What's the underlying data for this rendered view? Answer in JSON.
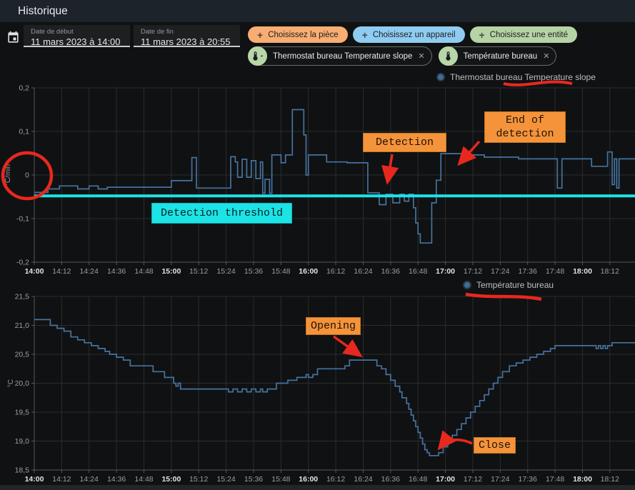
{
  "header": {
    "title": "Historique"
  },
  "toolbar": {
    "plus_glyph": "+",
    "close_glyph": "✕",
    "date_start": {
      "label": "Date de début",
      "value": "11 mars 2023 à 14:00"
    },
    "date_end": {
      "label": "Date de fin",
      "value": "11 mars 2023 à 20:55"
    },
    "filter_chips": [
      {
        "label": "Choisissez la pièce",
        "bg": "#f8ad72"
      },
      {
        "label": "Choisissez un appareil",
        "bg": "#8fccf1"
      },
      {
        "label": "Choisissez une entité",
        "bg": "#b5d3a4"
      }
    ],
    "entity_chips": [
      {
        "label": "Thermostat bureau Temperature slope"
      },
      {
        "label": "Température bureau"
      }
    ]
  },
  "colors": {
    "red_annotation": "#e8281e",
    "orange_annotation": "#f5933b",
    "threshold_cyan": "#1ce4e6",
    "series_blue": "#4573a0",
    "header_bg": "#1c232b"
  },
  "annotations": {
    "detection": "Detection",
    "end_of_detection": "End of detection",
    "opening": "Opening",
    "close": "Close"
  },
  "chart_data": [
    {
      "type": "line",
      "step": true,
      "legend": "Thermostat bureau Temperature slope",
      "ylabel": "°C/min",
      "ylim": [
        -0.2,
        0.2
      ],
      "ytick_values": [
        0.2,
        0.1,
        0,
        -0.1,
        -0.2
      ],
      "ytick_labels": [
        "0,2",
        "0,1",
        "0",
        "-0,1",
        "-0,2"
      ],
      "xlim_minutes": [
        0,
        263
      ],
      "x_start_label": "14:00",
      "xtick_interval_minutes": 12,
      "xtick_labels": [
        "14:00",
        "14:12",
        "14:24",
        "14:36",
        "14:48",
        "15:00",
        "15:12",
        "15:24",
        "15:36",
        "15:48",
        "16:00",
        "16:12",
        "16:24",
        "16:36",
        "16:48",
        "17:00",
        "17:12",
        "17:24",
        "17:36",
        "17:48",
        "18:00",
        "18:12"
      ],
      "grid": true,
      "threshold_line": {
        "value": -0.048,
        "color": "#1ce4e6",
        "label": "Detection threshold"
      },
      "series": [
        {
          "name": "Thermostat bureau Temperature slope",
          "color": "#4573a0",
          "points_min_value": [
            [
              0,
              -0.04
            ],
            [
              6,
              -0.032
            ],
            [
              11,
              -0.025
            ],
            [
              19,
              -0.032
            ],
            [
              24,
              -0.025
            ],
            [
              28,
              -0.032
            ],
            [
              32,
              -0.028
            ],
            [
              60,
              -0.013
            ],
            [
              69,
              0.04
            ],
            [
              71,
              -0.03
            ],
            [
              86,
              0.042
            ],
            [
              88,
              0.03
            ],
            [
              89,
              -0.005
            ],
            [
              91,
              0.036
            ],
            [
              93,
              -0.005
            ],
            [
              95,
              0.033
            ],
            [
              97,
              -0.008
            ],
            [
              99,
              0.03
            ],
            [
              100,
              -0.042
            ],
            [
              101,
              -0.01
            ],
            [
              103,
              -0.042
            ],
            [
              104,
              0.046
            ],
            [
              108,
              0.028
            ],
            [
              110,
              0.046
            ],
            [
              113,
              0.15
            ],
            [
              118,
              0.092
            ],
            [
              119,
              0
            ],
            [
              120,
              0.046
            ],
            [
              128,
              0.03
            ],
            [
              137,
              0.028
            ],
            [
              146,
              -0.041
            ],
            [
              151,
              -0.068
            ],
            [
              154,
              -0.044
            ],
            [
              157,
              -0.064
            ],
            [
              160,
              -0.044
            ],
            [
              162,
              -0.06
            ],
            [
              164,
              -0.044
            ],
            [
              166,
              -0.075
            ],
            [
              167,
              -0.11
            ],
            [
              168,
              -0.135
            ],
            [
              169,
              -0.156
            ],
            [
              174,
              -0.064
            ],
            [
              176,
              -0.012
            ],
            [
              178,
              0.049
            ],
            [
              190,
              0.046
            ],
            [
              197,
              0.041
            ],
            [
              212,
              0.037
            ],
            [
              229,
              -0.03
            ],
            [
              231,
              0.037
            ],
            [
              244,
              0.02
            ],
            [
              251,
              0.053
            ],
            [
              253,
              -0.022
            ],
            [
              254,
              0.037
            ],
            [
              255,
              -0.03
            ],
            [
              256,
              0.037
            ],
            [
              263,
              0.037
            ]
          ]
        }
      ]
    },
    {
      "type": "line",
      "step": true,
      "legend": "Température bureau",
      "ylabel": "°C",
      "ylim": [
        18.5,
        21.5
      ],
      "ytick_values": [
        21.5,
        21.0,
        20.5,
        20.0,
        19.5,
        19.0,
        18.5
      ],
      "ytick_labels": [
        "21,5",
        "21,0",
        "20,5",
        "20,0",
        "19,5",
        "19,0",
        "18,5"
      ],
      "xlim_minutes": [
        0,
        263
      ],
      "x_start_label": "14:00",
      "xtick_interval_minutes": 12,
      "xtick_labels": [
        "14:00",
        "14:12",
        "14:24",
        "14:36",
        "14:48",
        "15:00",
        "15:12",
        "15:24",
        "15:36",
        "15:48",
        "16:00",
        "16:12",
        "16:24",
        "16:36",
        "16:48",
        "17:00",
        "17:12",
        "17:24",
        "17:36",
        "17:48",
        "18:00",
        "18:12"
      ],
      "grid": true,
      "series": [
        {
          "name": "Température bureau",
          "color": "#4573a0",
          "points_min_value": [
            [
              0,
              21.1
            ],
            [
              7,
              21.0
            ],
            [
              10,
              20.95
            ],
            [
              13,
              20.9
            ],
            [
              16,
              20.8
            ],
            [
              19,
              20.75
            ],
            [
              22,
              20.7
            ],
            [
              25,
              20.65
            ],
            [
              28,
              20.6
            ],
            [
              31,
              20.55
            ],
            [
              33,
              20.5
            ],
            [
              36,
              20.45
            ],
            [
              39,
              20.4
            ],
            [
              42,
              20.3
            ],
            [
              52,
              20.2
            ],
            [
              57,
              20.1
            ],
            [
              61,
              20.0
            ],
            [
              62,
              19.95
            ],
            [
              63,
              20.0
            ],
            [
              64,
              19.9
            ],
            [
              85,
              19.85
            ],
            [
              87,
              19.9
            ],
            [
              89,
              19.85
            ],
            [
              91,
              19.9
            ],
            [
              93,
              19.85
            ],
            [
              95,
              19.9
            ],
            [
              97,
              19.85
            ],
            [
              99,
              19.9
            ],
            [
              100,
              19.85
            ],
            [
              102,
              19.9
            ],
            [
              106,
              20.0
            ],
            [
              111,
              20.05
            ],
            [
              115,
              20.1
            ],
            [
              119,
              20.15
            ],
            [
              120,
              20.1
            ],
            [
              122,
              20.15
            ],
            [
              124,
              20.25
            ],
            [
              136,
              20.3
            ],
            [
              138,
              20.4
            ],
            [
              150,
              20.3
            ],
            [
              152,
              20.25
            ],
            [
              154,
              20.15
            ],
            [
              156,
              20.05
            ],
            [
              158,
              19.95
            ],
            [
              160,
              19.85
            ],
            [
              161,
              19.75
            ],
            [
              163,
              19.65
            ],
            [
              164,
              19.55
            ],
            [
              165,
              19.45
            ],
            [
              166,
              19.35
            ],
            [
              167,
              19.25
            ],
            [
              168,
              19.15
            ],
            [
              169,
              19.05
            ],
            [
              170,
              18.95
            ],
            [
              171,
              18.85
            ],
            [
              172,
              18.8
            ],
            [
              173,
              18.75
            ],
            [
              177,
              18.8
            ],
            [
              179,
              18.9
            ],
            [
              181,
              19.0
            ],
            [
              183,
              19.1
            ],
            [
              185,
              19.2
            ],
            [
              187,
              19.3
            ],
            [
              189,
              19.4
            ],
            [
              191,
              19.5
            ],
            [
              193,
              19.6
            ],
            [
              195,
              19.7
            ],
            [
              197,
              19.8
            ],
            [
              199,
              19.9
            ],
            [
              201,
              20.0
            ],
            [
              203,
              20.1
            ],
            [
              205,
              20.2
            ],
            [
              208,
              20.3
            ],
            [
              211,
              20.35
            ],
            [
              214,
              20.4
            ],
            [
              217,
              20.45
            ],
            [
              220,
              20.5
            ],
            [
              223,
              20.55
            ],
            [
              226,
              20.6
            ],
            [
              228,
              20.65
            ],
            [
              246,
              20.6
            ],
            [
              247,
              20.65
            ],
            [
              248,
              20.6
            ],
            [
              249,
              20.65
            ],
            [
              250,
              20.6
            ],
            [
              251,
              20.65
            ],
            [
              253,
              20.7
            ],
            [
              263,
              20.7
            ]
          ]
        }
      ]
    }
  ]
}
